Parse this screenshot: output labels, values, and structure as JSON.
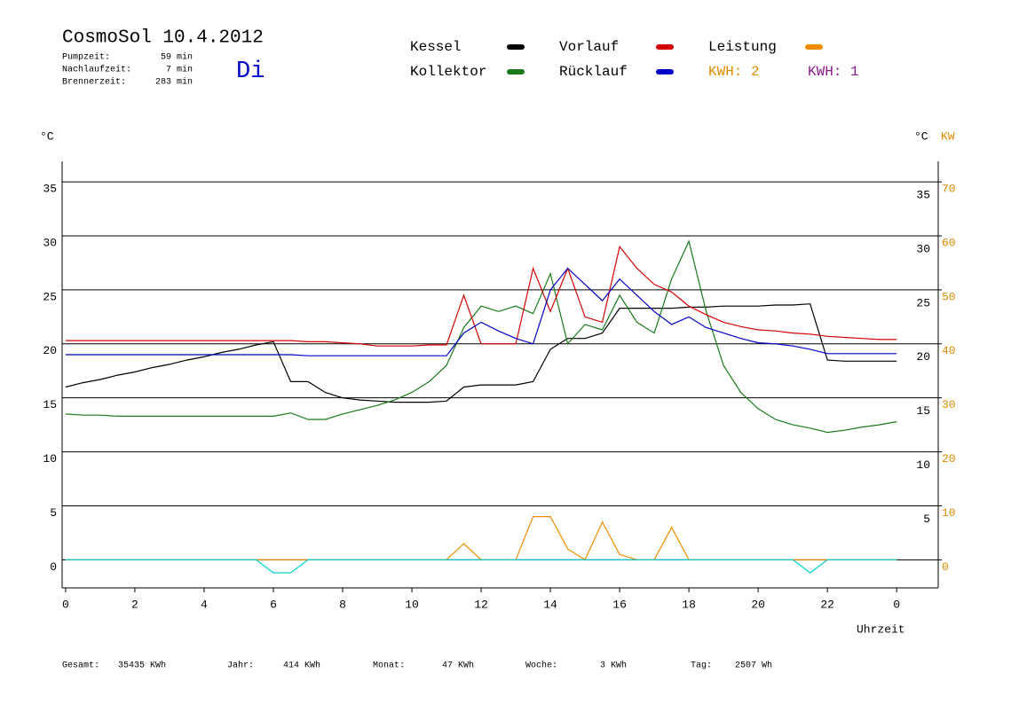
{
  "chart_data": {
    "type": "line",
    "title": "CosmoSol 10.4.2012",
    "day": "Di",
    "info": [
      {
        "label": "Pumpzeit:",
        "value": "59 min"
      },
      {
        "label": "Nachlaufzeit:",
        "value": "7 min"
      },
      {
        "label": "Brennerzeit:",
        "value": "283 min"
      }
    ],
    "y_label": "°C",
    "y2_label": "°C",
    "y2_unit": "KW",
    "x_label": "Uhrzeit",
    "kwh_labels": [
      {
        "text": "KWH: 2",
        "color": "#e08a00"
      },
      {
        "text": "KWH: 1",
        "color": "#8b1a8b"
      }
    ],
    "footer": [
      {
        "label": "Gesamt:",
        "value": "35435 KWh"
      },
      {
        "label": "Jahr:",
        "value": "414 KWh"
      },
      {
        "label": "Monat:",
        "value": "47 KWh"
      },
      {
        "label": "Woche:",
        "value": "3 KWh"
      },
      {
        "label": "Tag:",
        "value": "2507 Wh"
      }
    ],
    "x": [
      0,
      0.5,
      1,
      1.5,
      2,
      2.5,
      3,
      3.5,
      4,
      4.5,
      5,
      5.5,
      6,
      6.5,
      7,
      7.5,
      8,
      8.5,
      9,
      9.5,
      10,
      10.5,
      11,
      11.5,
      12,
      12.5,
      13,
      13.5,
      14,
      14.5,
      15,
      15.5,
      16,
      16.5,
      17,
      17.5,
      18,
      18.5,
      19,
      19.5,
      20,
      20.5,
      21,
      21.5,
      22,
      22.5,
      23,
      23.5,
      24
    ],
    "series": [
      {
        "name": "Kessel",
        "color": "#000000",
        "values": [
          16.0,
          16.4,
          16.7,
          17.1,
          17.4,
          17.8,
          18.1,
          18.5,
          18.8,
          19.2,
          19.5,
          19.9,
          20.2,
          16.5,
          16.5,
          15.5,
          15.0,
          14.8,
          14.7,
          14.6,
          14.6,
          14.6,
          14.7,
          16.0,
          16.2,
          16.2,
          16.2,
          16.5,
          19.5,
          20.5,
          20.5,
          21.0,
          23.3,
          23.3,
          23.3,
          23.3,
          23.4,
          23.4,
          23.5,
          23.5,
          23.5,
          23.6,
          23.6,
          23.7,
          18.5,
          18.4,
          18.4,
          18.4,
          18.4
        ]
      },
      {
        "name": "Kollektor",
        "color": "#1a7a1a",
        "values": [
          13.5,
          13.4,
          13.4,
          13.3,
          13.3,
          13.3,
          13.3,
          13.3,
          13.3,
          13.3,
          13.3,
          13.3,
          13.3,
          13.6,
          13.0,
          13.0,
          13.5,
          13.9,
          14.3,
          14.8,
          15.5,
          16.5,
          18.0,
          21.5,
          23.5,
          23.0,
          23.5,
          22.8,
          26.5,
          20.0,
          21.8,
          21.3,
          24.5,
          22.0,
          21.0,
          26.0,
          29.5,
          23.0,
          18.0,
          15.5,
          14.0,
          13.0,
          12.5,
          12.2,
          11.8,
          12.0,
          12.3,
          12.5,
          12.8
        ]
      },
      {
        "name": "Vorlauf",
        "color": "#d40000",
        "values": [
          20.3,
          20.3,
          20.3,
          20.3,
          20.3,
          20.3,
          20.3,
          20.3,
          20.3,
          20.3,
          20.3,
          20.3,
          20.3,
          20.3,
          20.2,
          20.2,
          20.1,
          20.0,
          19.8,
          19.8,
          19.8,
          19.9,
          19.9,
          24.5,
          20.0,
          20.0,
          20.0,
          27.0,
          23.0,
          27.0,
          22.5,
          22.0,
          29.0,
          27.0,
          25.5,
          24.8,
          23.5,
          22.7,
          22.0,
          21.6,
          21.3,
          21.2,
          21.0,
          20.9,
          20.7,
          20.6,
          20.5,
          20.4,
          20.4
        ]
      },
      {
        "name": "Rücklauf",
        "color": "#0000c8",
        "values": [
          19.0,
          19.0,
          19.0,
          19.0,
          19.0,
          19.0,
          19.0,
          19.0,
          19.0,
          19.0,
          19.0,
          19.0,
          19.0,
          19.0,
          18.9,
          18.9,
          18.9,
          18.9,
          18.9,
          18.9,
          18.9,
          18.9,
          18.9,
          21.0,
          22.0,
          21.2,
          20.5,
          20.0,
          25.0,
          27.0,
          25.5,
          24.0,
          26.0,
          24.5,
          23.0,
          21.8,
          22.5,
          21.5,
          21.0,
          20.5,
          20.1,
          20.0,
          19.8,
          19.5,
          19.1,
          19.1,
          19.1,
          19.1,
          19.1
        ]
      },
      {
        "name": "Leistung",
        "color": "#f08c00",
        "axis": "y2",
        "values": [
          0,
          0,
          0,
          0,
          0,
          0,
          0,
          0,
          0,
          0,
          0,
          0,
          0,
          0,
          0,
          0,
          0,
          0,
          0,
          0,
          0,
          0,
          0,
          3,
          0,
          0,
          0,
          8,
          8,
          2,
          0,
          7,
          1,
          0,
          0,
          6,
          0,
          0,
          0,
          0,
          0,
          0,
          0,
          0,
          0,
          0,
          0,
          0,
          0
        ]
      },
      {
        "color": "#00d0d0",
        "values": [
          0,
          0,
          0,
          0,
          0,
          0,
          0,
          0,
          0,
          0,
          0,
          0,
          -1.2,
          -1.2,
          0,
          0,
          0,
          0,
          0,
          0,
          0,
          0,
          0,
          0,
          0,
          0,
          0,
          0,
          0,
          0,
          0,
          0,
          0,
          0,
          0,
          0,
          0,
          0,
          0,
          0,
          0,
          0,
          0,
          -1.2,
          0,
          0,
          0,
          0,
          0
        ]
      }
    ],
    "xlim": [
      -0.1,
      25.2
    ],
    "xticks": [
      0,
      2,
      4,
      6,
      8,
      10,
      12,
      14,
      16,
      18,
      20,
      22,
      {
        "value": 24,
        "label": "0"
      }
    ],
    "ylim": [
      -2.6,
      36.9
    ],
    "yticks": [
      0,
      5,
      10,
      15,
      20,
      25,
      30,
      35
    ],
    "y2lim": [
      -5.2,
      73.8
    ],
    "y2ticks": [
      0,
      10,
      20,
      30,
      40,
      50,
      60,
      70
    ],
    "grid": true
  }
}
